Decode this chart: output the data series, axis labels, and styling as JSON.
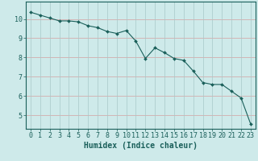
{
  "x": [
    0,
    1,
    2,
    3,
    4,
    5,
    6,
    7,
    8,
    9,
    10,
    11,
    12,
    13,
    14,
    15,
    16,
    17,
    18,
    19,
    20,
    21,
    22,
    23
  ],
  "y": [
    10.35,
    10.2,
    10.05,
    9.9,
    9.9,
    9.85,
    9.65,
    9.55,
    9.35,
    9.25,
    9.4,
    8.85,
    7.95,
    8.5,
    8.25,
    7.95,
    7.85,
    7.3,
    6.7,
    6.6,
    6.6,
    6.25,
    5.9,
    4.55
  ],
  "line_color": "#1a5f5a",
  "marker": "D",
  "marker_size": 2.0,
  "bg_color": "#ceeaea",
  "grid_color_h": "#d4a0a0",
  "grid_color_v": "#a8c8c8",
  "axis_color": "#1a5f5a",
  "xlabel": "Humidex (Indice chaleur)",
  "xlabel_fontsize": 7,
  "tick_fontsize": 6,
  "xlim": [
    -0.5,
    23.5
  ],
  "ylim": [
    4.3,
    10.9
  ],
  "yticks": [
    5,
    6,
    7,
    8,
    9,
    10
  ],
  "xticks": [
    0,
    1,
    2,
    3,
    4,
    5,
    6,
    7,
    8,
    9,
    10,
    11,
    12,
    13,
    14,
    15,
    16,
    17,
    18,
    19,
    20,
    21,
    22,
    23
  ]
}
